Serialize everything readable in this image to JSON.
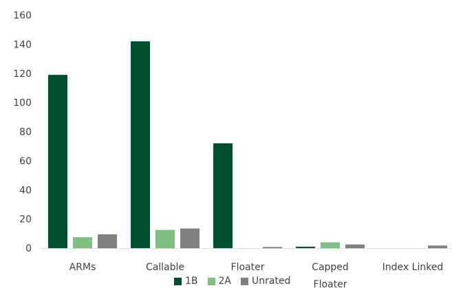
{
  "chart_data": {
    "type": "bar",
    "categories": [
      [
        "ARMs"
      ],
      [
        "Callable"
      ],
      [
        "Floater"
      ],
      [
        "Capped",
        "Floater"
      ],
      [
        "Index Linked"
      ]
    ],
    "series": [
      {
        "name": "1B",
        "color": "#00502f",
        "values": [
          119,
          142,
          72,
          1,
          0
        ]
      },
      {
        "name": "2A",
        "color": "#7fbf7f",
        "values": [
          7.5,
          12.5,
          0,
          4,
          0
        ]
      },
      {
        "name": "Unrated",
        "color": "#808080",
        "values": [
          9.5,
          13.5,
          0.8,
          2.5,
          1.8
        ]
      }
    ],
    "yticks": [
      "0",
      "20",
      "40",
      "60",
      "80",
      "100",
      "120",
      "140",
      "160"
    ],
    "ylim": [
      0,
      160
    ],
    "grid": false,
    "legend_position": "bottom",
    "title": "",
    "xlabel": "",
    "ylabel": ""
  }
}
